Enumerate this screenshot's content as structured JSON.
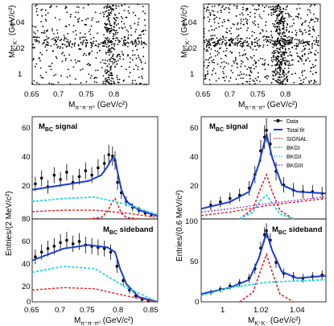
{
  "chart_data": [
    {
      "id": "sp_left",
      "type": "scatter",
      "xlabel": "M_{π⁺π⁻π⁰} (GeV/c²)",
      "ylabel": "M_{K⁺K⁻} (GeV/c²)",
      "xlim": [
        0.65,
        0.85
      ],
      "ylim": [
        0.985,
        1.05
      ],
      "xticks": [
        "0.65",
        "0.7",
        "0.75",
        "0.8"
      ],
      "yticks": [
        "1",
        "1.02",
        "1.04"
      ],
      "density": {
        "band_x": 0.782,
        "band_y": 1.019
      }
    },
    {
      "id": "sp_right",
      "type": "scatter",
      "xlabel": "M_{π⁺π⁻π⁰} (GeV/c²)",
      "ylabel": "M_{K⁺K⁻} (GeV/c²)",
      "xlim": [
        0.65,
        0.85
      ],
      "ylim": [
        0.985,
        1.05
      ],
      "xticks": [
        "0.65",
        "0.7",
        "0.75",
        "0.8"
      ],
      "yticks": [
        "1",
        "1.02",
        "1.04"
      ],
      "density": {
        "band_x": 0.782,
        "band_y": 1.019
      }
    },
    {
      "id": "omega_signal",
      "type": "line",
      "label": "M_BC signal",
      "xlim": [
        0.65,
        0.85
      ],
      "ylim": [
        0,
        70
      ],
      "yticks": [
        "20",
        "40",
        "60"
      ],
      "series": [
        {
          "name": "Data",
          "x": [
            0.655,
            0.665,
            0.675,
            0.685,
            0.695,
            0.705,
            0.715,
            0.725,
            0.735,
            0.745,
            0.755,
            0.765,
            0.772,
            0.778,
            0.782,
            0.786,
            0.792,
            0.8,
            0.81,
            0.82,
            0.83,
            0.84
          ],
          "values": [
            24,
            28,
            22,
            30,
            27,
            32,
            25,
            29,
            33,
            30,
            35,
            38,
            44,
            43,
            40,
            25,
            18,
            12,
            8,
            6,
            4,
            3
          ]
        },
        {
          "name": "Total fit",
          "x": [
            0.65,
            0.68,
            0.71,
            0.74,
            0.76,
            0.77,
            0.778,
            0.782,
            0.786,
            0.792,
            0.8,
            0.82,
            0.85
          ],
          "values": [
            20,
            22,
            24,
            26,
            30,
            36,
            42,
            41,
            32,
            20,
            12,
            6,
            2
          ]
        },
        {
          "name": "SIGNAL",
          "x": [
            0.74,
            0.76,
            0.77,
            0.778,
            0.782,
            0.786,
            0.792,
            0.8,
            0.82
          ],
          "values": [
            0,
            1,
            5,
            12,
            14,
            10,
            4,
            1,
            0
          ]
        },
        {
          "name": "BKGI",
          "x": [
            0.65,
            0.7,
            0.75,
            0.8,
            0.85
          ],
          "values": [
            12,
            14,
            15,
            10,
            3
          ]
        },
        {
          "name": "BKGII",
          "x": [
            0.65,
            0.7,
            0.75,
            0.8,
            0.85
          ],
          "values": [
            5,
            6,
            6,
            4,
            1
          ]
        }
      ]
    },
    {
      "id": "omega_sideband",
      "type": "line",
      "label": "M_BC sideband",
      "xlim": [
        0.65,
        0.85
      ],
      "ylim": [
        0,
        70
      ],
      "xticks": [
        "0.65",
        "0.7",
        "0.75",
        "0.8",
        "0.85"
      ],
      "yticks": [
        "0",
        "20",
        "40",
        "60"
      ],
      "xlabel": "M_{π⁺π⁻π⁰} (GeV/c²)",
      "ylabel": "Entries/(2 MeV/c²)",
      "series": [
        {
          "name": "Data",
          "x": [
            0.655,
            0.665,
            0.675,
            0.685,
            0.695,
            0.705,
            0.715,
            0.725,
            0.735,
            0.745,
            0.755,
            0.765,
            0.775,
            0.785,
            0.795,
            0.805,
            0.815,
            0.825,
            0.835
          ],
          "values": [
            38,
            42,
            45,
            47,
            50,
            52,
            49,
            51,
            48,
            47,
            46,
            45,
            42,
            30,
            18,
            10,
            5,
            2,
            1
          ]
        },
        {
          "name": "Total fit",
          "x": [
            0.65,
            0.7,
            0.74,
            0.77,
            0.782,
            0.79,
            0.8,
            0.82,
            0.85
          ],
          "values": [
            35,
            45,
            48,
            46,
            42,
            28,
            15,
            4,
            0
          ]
        },
        {
          "name": "BKGI",
          "x": [
            0.65,
            0.7,
            0.75,
            0.8,
            0.85
          ],
          "values": [
            25,
            30,
            28,
            12,
            0
          ]
        },
        {
          "name": "BKGII",
          "x": [
            0.65,
            0.7,
            0.75,
            0.8,
            0.85
          ],
          "values": [
            10,
            12,
            11,
            5,
            0
          ]
        }
      ]
    },
    {
      "id": "phi_signal",
      "type": "line",
      "label": "M_BC signal",
      "xlim": [
        0.985,
        1.05
      ],
      "ylim": [
        0,
        60
      ],
      "yticks": [
        "20",
        "40",
        "60"
      ],
      "series": [
        {
          "name": "Data",
          "x": [
            0.99,
            0.995,
            1.0,
            1.005,
            1.01,
            1.013,
            1.016,
            1.018,
            1.019,
            1.021,
            1.024,
            1.028,
            1.033,
            1.038,
            1.043,
            1.048
          ],
          "values": [
            8,
            10,
            12,
            14,
            18,
            26,
            40,
            48,
            52,
            44,
            28,
            20,
            17,
            16,
            16,
            15
          ]
        },
        {
          "name": "Total fit",
          "x": [
            0.985,
            1.0,
            1.01,
            1.015,
            1.019,
            1.022,
            1.027,
            1.035,
            1.05
          ],
          "values": [
            6,
            10,
            16,
            32,
            50,
            36,
            20,
            16,
            15
          ]
        },
        {
          "name": "SIGNAL",
          "x": [
            1.005,
            1.012,
            1.016,
            1.019,
            1.022,
            1.026,
            1.033
          ],
          "values": [
            0,
            6,
            18,
            26,
            16,
            5,
            0
          ]
        },
        {
          "name": "BKGI",
          "x": [
            1.005,
            1.012,
            1.016,
            1.019,
            1.022,
            1.026,
            1.033
          ],
          "values": [
            0,
            4,
            11,
            14,
            9,
            3,
            0
          ]
        },
        {
          "name": "BKGII",
          "x": [
            0.985,
            1.0,
            1.02,
            1.05
          ],
          "values": [
            2,
            4,
            8,
            12
          ]
        },
        {
          "name": "BKGIII",
          "x": [
            0.985,
            1.0,
            1.02,
            1.05
          ],
          "values": [
            4,
            6,
            9,
            13
          ]
        }
      ]
    },
    {
      "id": "phi_sideband",
      "type": "line",
      "label": "M_BC sideband",
      "xlim": [
        0.985,
        1.05
      ],
      "ylim": [
        0,
        105
      ],
      "xticks": [
        "1",
        "1.02",
        "1.04"
      ],
      "yticks": [
        "0",
        "50",
        "100"
      ],
      "xlabel": "M_{K⁺K⁻} (GeV/c²)",
      "ylabel": "Entries/(0.6 MeV/c²)",
      "series": [
        {
          "name": "Data",
          "x": [
            0.99,
            0.995,
            1.0,
            1.005,
            1.01,
            1.013,
            1.016,
            1.018,
            1.019,
            1.021,
            1.024,
            1.028,
            1.033,
            1.038,
            1.043,
            1.048
          ],
          "values": [
            12,
            16,
            20,
            24,
            30,
            42,
            68,
            85,
            90,
            78,
            50,
            36,
            32,
            30,
            32,
            34
          ]
        },
        {
          "name": "Total fit",
          "x": [
            0.985,
            1.0,
            1.01,
            1.015,
            1.019,
            1.022,
            1.027,
            1.035,
            1.05
          ],
          "values": [
            10,
            18,
            28,
            55,
            88,
            65,
            38,
            30,
            33
          ]
        },
        {
          "name": "SIGNAL",
          "x": [
            1.005,
            1.012,
            1.016,
            1.019,
            1.022,
            1.026,
            1.033
          ],
          "values": [
            0,
            12,
            40,
            60,
            38,
            10,
            0
          ]
        },
        {
          "name": "BKGI",
          "x": [
            0.985,
            1.0,
            1.02,
            1.05
          ],
          "values": [
            8,
            18,
            25,
            28
          ]
        }
      ]
    }
  ],
  "legend": {
    "entries": [
      "Data",
      "Total fit",
      "SIGNAL",
      "BKGI",
      "BKGII",
      "BKGIII"
    ],
    "colors": [
      "#000000",
      "#1a3cd9",
      "#e01f1f",
      "#22bb22",
      "#22d4e6",
      "#8b1ae0"
    ]
  },
  "colors": {
    "fit": "#1a3cd9",
    "signal": "#e01f1f",
    "bkg1": "#22bb22",
    "bkg2": "#22d4e6",
    "bkg3": "#8b1ae0"
  }
}
